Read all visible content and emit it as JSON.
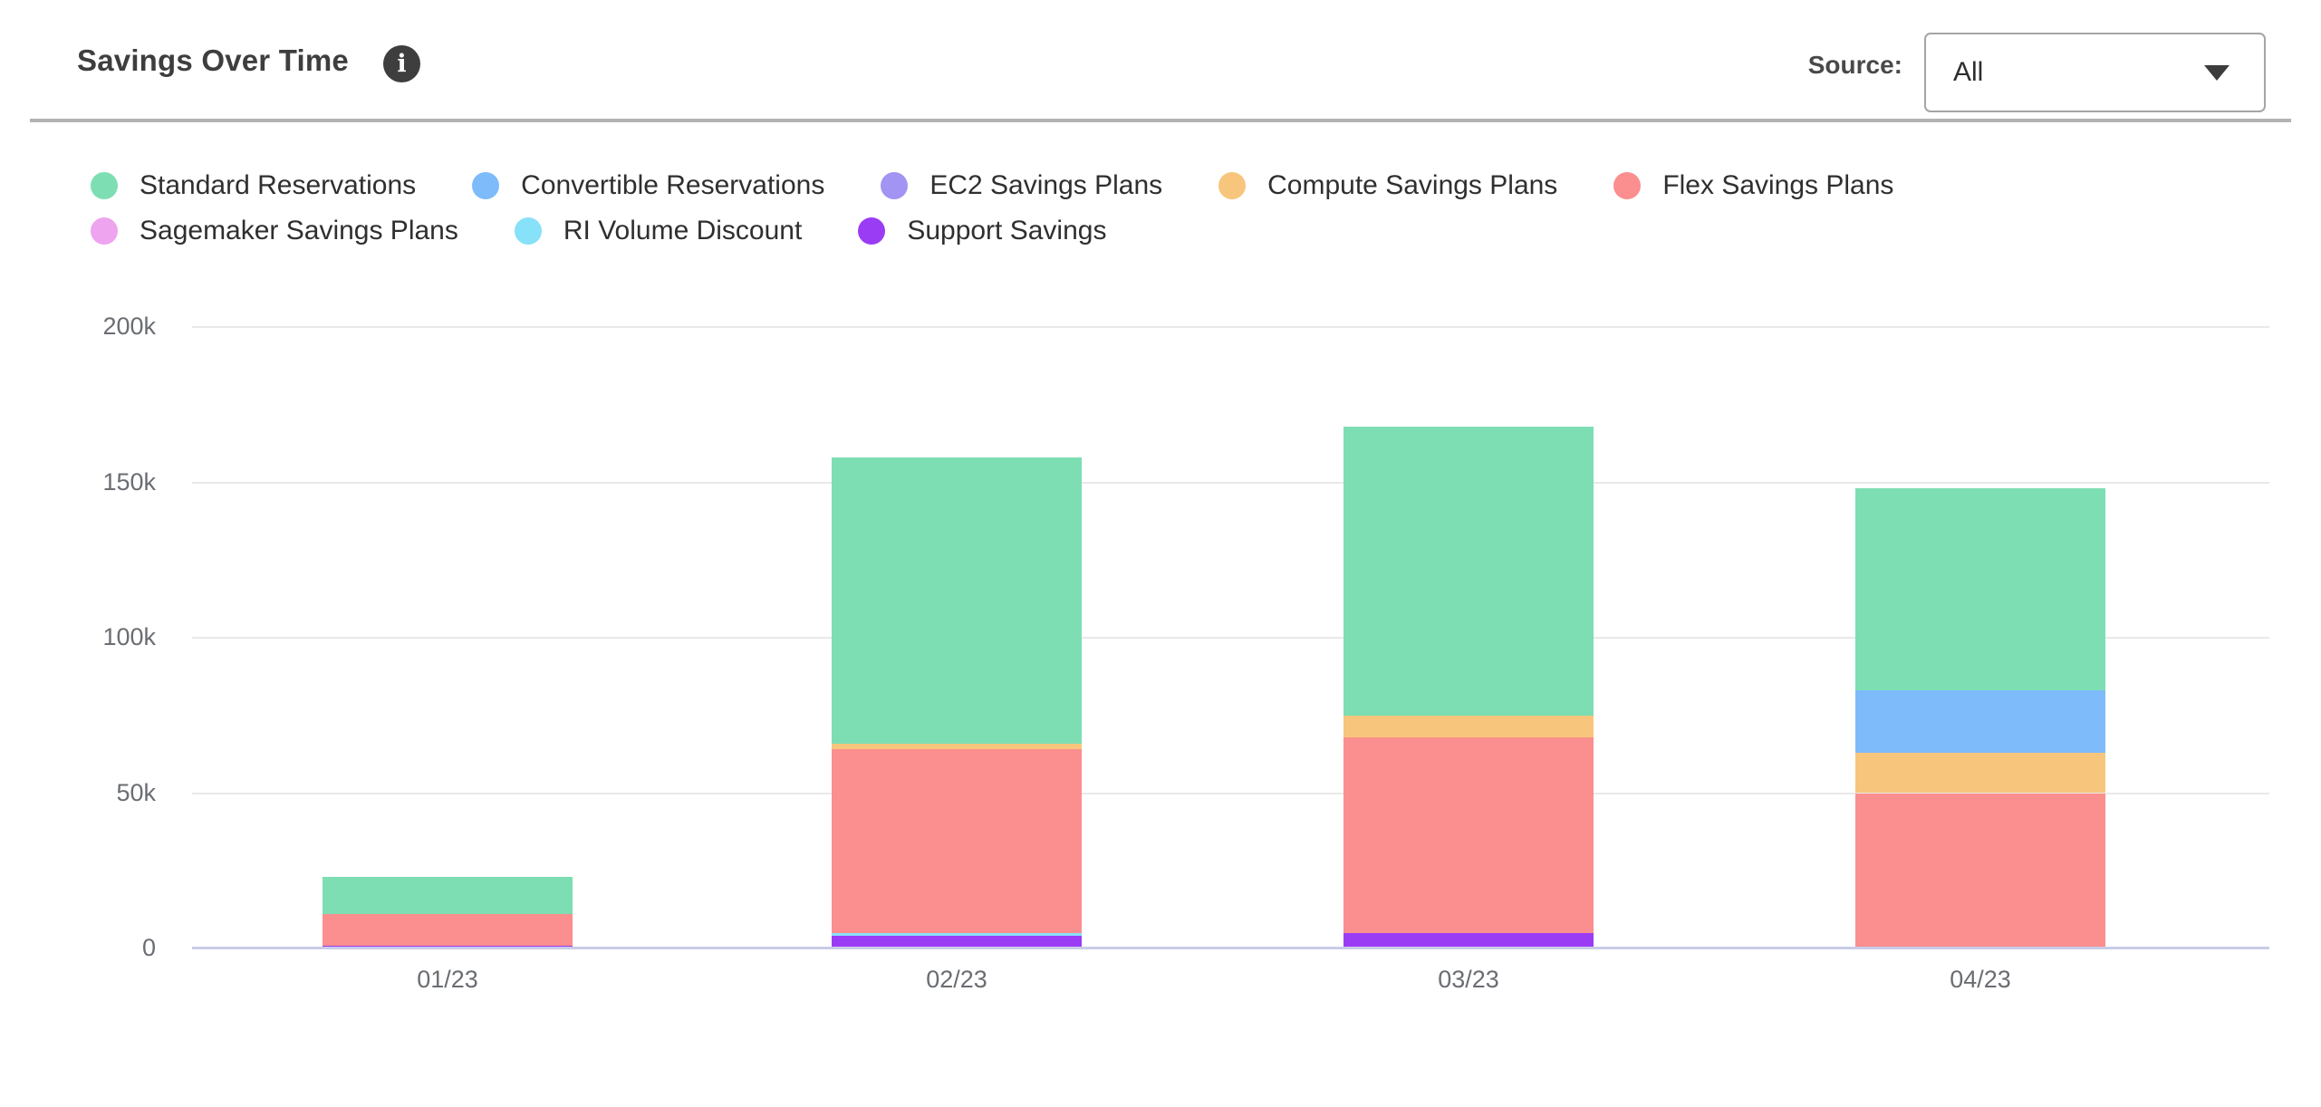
{
  "header": {
    "title": "Savings Over Time",
    "source_label": "Source:",
    "source_value": "All"
  },
  "colors": {
    "title_text": "#3e3e3e",
    "info_icon_bg": "#3e3e3e",
    "divider": "#b3b3b3",
    "dropdown_border": "#a5a5a5",
    "legend_text": "#2f2f2f",
    "tick_text": "#6a6d72",
    "gridline": "#e9e9e9",
    "axis_line": "#c9cce7"
  },
  "chart_data": {
    "type": "bar",
    "stacked": true,
    "stack_order": "reverse-legend",
    "title": "Savings Over Time",
    "xlabel": "",
    "ylabel": "",
    "unit": "thousands",
    "ylim": [
      0,
      200
    ],
    "grid": true,
    "legend_position": "top-left",
    "categories": [
      "01/23",
      "02/23",
      "03/23",
      "04/23"
    ],
    "yticks": [
      {
        "value": 0,
        "label": "0"
      },
      {
        "value": 50,
        "label": "50k"
      },
      {
        "value": 100,
        "label": "100k"
      },
      {
        "value": 150,
        "label": "150k"
      },
      {
        "value": 200,
        "label": "200k"
      }
    ],
    "series": [
      {
        "name": "Standard Reservations",
        "color": "#7ddeb3",
        "values": [
          12,
          92,
          93,
          65
        ]
      },
      {
        "name": "Convertible Reservations",
        "color": "#7ebbfa",
        "values": [
          0,
          0,
          0,
          20
        ]
      },
      {
        "name": "EC2 Savings Plans",
        "color": "#a294f3",
        "values": [
          0,
          0,
          0,
          0
        ]
      },
      {
        "name": "Compute Savings Plans",
        "color": "#f8c57c",
        "values": [
          0,
          2,
          7,
          13
        ]
      },
      {
        "name": "Flex Savings Plans",
        "color": "#fb8e8e",
        "values": [
          10,
          59,
          63,
          50
        ]
      },
      {
        "name": "Sagemaker Savings Plans",
        "color": "#eea4ee",
        "values": [
          0,
          0,
          0,
          0
        ]
      },
      {
        "name": "RI Volume Discount",
        "color": "#87e1f8",
        "values": [
          0,
          1,
          0,
          0
        ]
      },
      {
        "name": "Support Savings",
        "color": "#9b3cf5",
        "values": [
          1,
          4,
          5,
          0
        ]
      }
    ]
  }
}
